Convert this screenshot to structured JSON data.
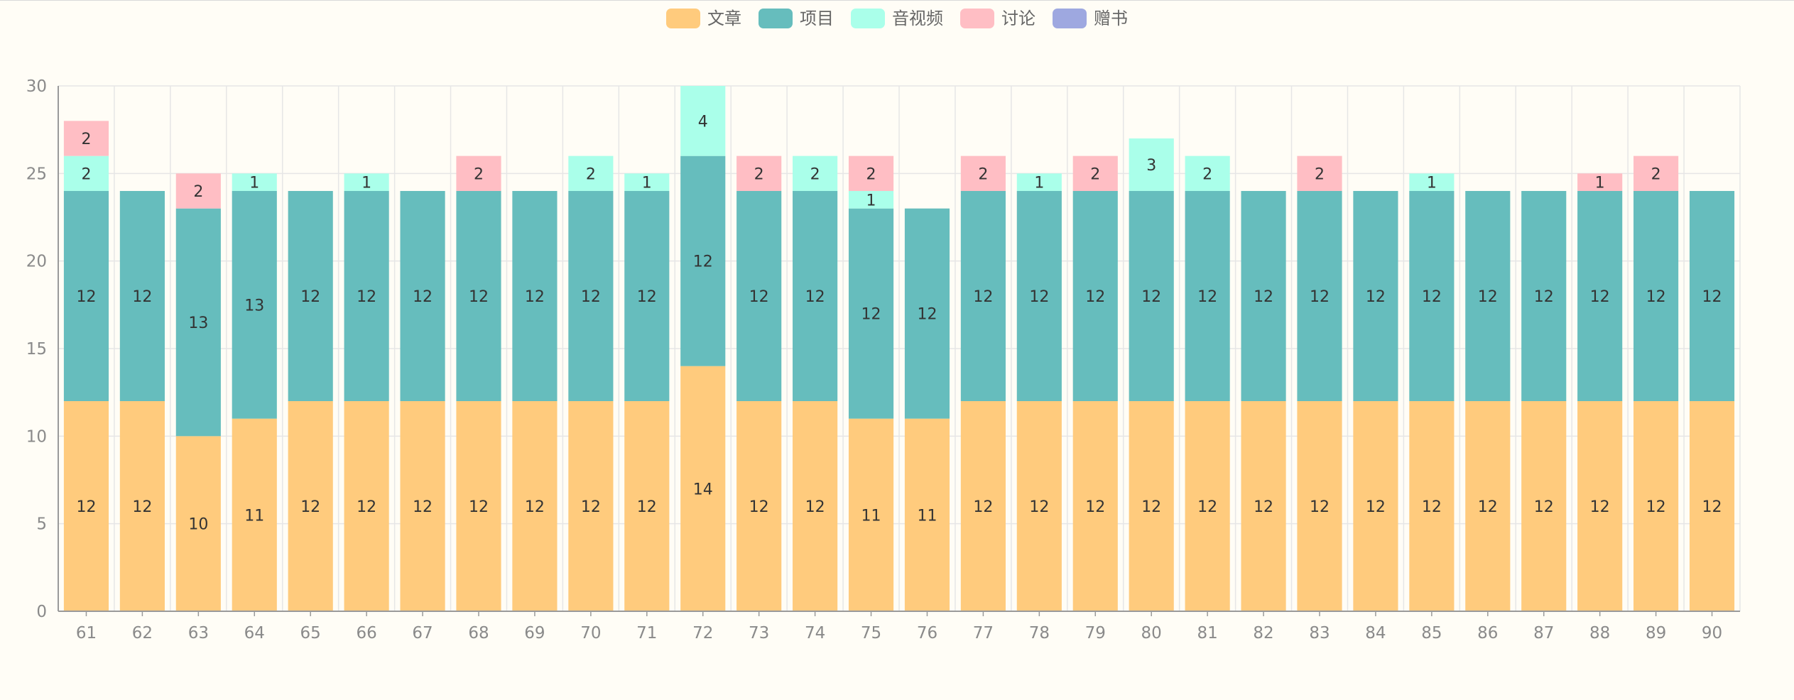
{
  "chart_data": {
    "type": "bar",
    "stacked": true,
    "title": "",
    "xlabel": "",
    "ylabel": "",
    "ylim": [
      0,
      30
    ],
    "y_ticks": [
      0,
      5,
      10,
      15,
      20,
      25,
      30
    ],
    "grid": true,
    "legend_position": "top-center",
    "categories": [
      "61",
      "62",
      "63",
      "64",
      "65",
      "66",
      "67",
      "68",
      "69",
      "70",
      "71",
      "72",
      "73",
      "74",
      "75",
      "76",
      "77",
      "78",
      "79",
      "80",
      "81",
      "82",
      "83",
      "84",
      "85",
      "86",
      "87",
      "88",
      "89",
      "90"
    ],
    "series": [
      {
        "name": "文章",
        "color": "#ffcb7d",
        "values": [
          12,
          12,
          10,
          11,
          12,
          12,
          12,
          12,
          12,
          12,
          12,
          14,
          12,
          12,
          11,
          11,
          12,
          12,
          12,
          12,
          12,
          12,
          12,
          12,
          12,
          12,
          12,
          12,
          12,
          12
        ]
      },
      {
        "name": "项目",
        "color": "#66bdbd",
        "values": [
          12,
          12,
          13,
          13,
          12,
          12,
          12,
          12,
          12,
          12,
          12,
          12,
          12,
          12,
          12,
          12,
          12,
          12,
          12,
          12,
          12,
          12,
          12,
          12,
          12,
          12,
          12,
          12,
          12,
          12
        ]
      },
      {
        "name": "音视频",
        "color": "#aaffea",
        "values": [
          2,
          0,
          0,
          1,
          0,
          1,
          0,
          0,
          0,
          2,
          1,
          4,
          0,
          2,
          1,
          0,
          0,
          1,
          0,
          3,
          2,
          0,
          0,
          0,
          1,
          0,
          0,
          0,
          0,
          0
        ]
      },
      {
        "name": "讨论",
        "color": "#ffbec4",
        "values": [
          2,
          0,
          2,
          0,
          0,
          0,
          0,
          2,
          0,
          0,
          0,
          0,
          2,
          0,
          2,
          0,
          2,
          0,
          2,
          0,
          0,
          0,
          2,
          0,
          0,
          0,
          0,
          1,
          2,
          0
        ]
      },
      {
        "name": "赠书",
        "color": "#9ea8e0",
        "values": [
          0,
          0,
          0,
          0,
          0,
          0,
          0,
          0,
          0,
          0,
          0,
          0,
          0,
          0,
          0,
          0,
          0,
          0,
          0,
          0,
          0,
          0,
          0,
          0,
          0,
          0,
          0,
          0,
          0,
          0
        ]
      }
    ]
  }
}
